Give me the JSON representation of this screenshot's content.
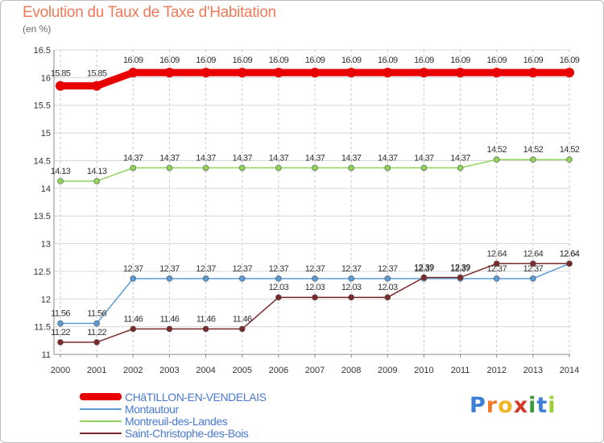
{
  "header": {
    "title": "Evolution du Taux de Taxe d'Habitation",
    "unit": "(en %)"
  },
  "logo": {
    "letters": [
      {
        "char": "P",
        "color": "#3b7fd6"
      },
      {
        "char": "r",
        "color": "#f07a2a"
      },
      {
        "char": "o",
        "color": "#f2b52a"
      },
      {
        "char": "x",
        "color": "#d23a2a"
      },
      {
        "char": "i",
        "color": "#3a9a3a"
      },
      {
        "char": "t",
        "color": "#3b7fd6"
      },
      {
        "char": "i",
        "color": "#9acd32"
      }
    ]
  },
  "chart_data": {
    "type": "line",
    "title": "Evolution du Taux de Taxe d'Habitation",
    "ylabel": "(en %)",
    "xlabel": "",
    "ylim": [
      11,
      16.5
    ],
    "yticks": [
      "11",
      "11.5",
      "12",
      "12.5",
      "13",
      "13.5",
      "14",
      "14.5",
      "15",
      "15.5",
      "16",
      "16.5"
    ],
    "x": [
      "2000",
      "2001",
      "2002",
      "2003",
      "2004",
      "2005",
      "2006",
      "2007",
      "2008",
      "2009",
      "2010",
      "2011",
      "2012",
      "2013",
      "2014"
    ],
    "grid": true,
    "legend_position": "bottom-left",
    "series": [
      {
        "name": "CHâTILLON-EN-VENDELAIS",
        "color": "#e80000",
        "values": [
          15.85,
          15.85,
          16.09,
          16.09,
          16.09,
          16.09,
          16.09,
          16.09,
          16.09,
          16.09,
          16.09,
          16.09,
          16.09,
          16.09,
          16.09
        ],
        "labels": [
          "15.85",
          "15.85",
          "16.09",
          "16.09",
          "16.09",
          "16.09",
          "16.09",
          "16.09",
          "16.09",
          "16.09",
          "16.09",
          "16.09",
          "16.09",
          "16.09",
          "16.09"
        ]
      },
      {
        "name": "Montautour",
        "color": "#5b9bd5",
        "values": [
          11.56,
          11.56,
          12.37,
          12.37,
          12.37,
          12.37,
          12.37,
          12.37,
          12.37,
          12.37,
          12.37,
          12.37,
          12.37,
          12.37,
          12.64
        ],
        "labels": [
          "11.56",
          "11.56",
          "12.37",
          "12.37",
          "12.37",
          "12.37",
          "12.37",
          "12.37",
          "12.37",
          "12.37",
          "12.37",
          "12.37",
          "12.37",
          "12.37",
          "12.64"
        ]
      },
      {
        "name": "Montreuil-des-Landes",
        "color": "#8fd35a",
        "values": [
          14.13,
          14.13,
          14.37,
          14.37,
          14.37,
          14.37,
          14.37,
          14.37,
          14.37,
          14.37,
          14.37,
          14.37,
          14.52,
          14.52,
          14.52
        ],
        "labels": [
          "14.13",
          "14.13",
          "14.37",
          "14.37",
          "14.37",
          "14.37",
          "14.37",
          "14.37",
          "14.37",
          "14.37",
          "14.37",
          "14.37",
          "14.52",
          "14.52",
          "14.52"
        ]
      },
      {
        "name": "Saint-Christophe-des-Bois",
        "color": "#7a2a2a",
        "values": [
          11.22,
          11.22,
          11.46,
          11.46,
          11.46,
          11.46,
          12.03,
          12.03,
          12.03,
          12.03,
          12.39,
          12.39,
          12.64,
          12.64,
          12.64
        ],
        "labels": [
          "11.22",
          "11.22",
          "11.46",
          "11.46",
          "11.46",
          "11.46",
          "12.03",
          "12.03",
          "12.03",
          "12.03",
          "12.39",
          "12.39",
          "12.64",
          "12.64",
          "12.64"
        ]
      }
    ]
  }
}
